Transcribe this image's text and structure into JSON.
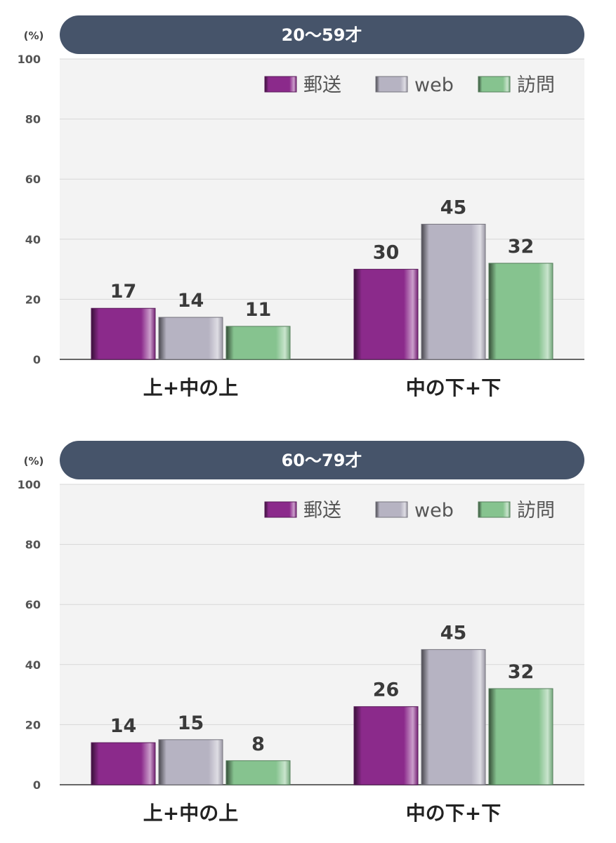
{
  "colors": {
    "title_bar": "#46546a",
    "plot_bg": "#f3f3f3",
    "mail": "#8b2a8b",
    "web": "#b6b3c2",
    "visit": "#86c38f"
  },
  "chart_data": [
    {
      "type": "bar",
      "title": "20〜59才",
      "unit_label": "(%)",
      "categories": [
        "上+中の上",
        "中の下+下"
      ],
      "series": [
        {
          "name": "郵送",
          "color_key": "mail",
          "values": [
            17,
            30
          ]
        },
        {
          "name": "web",
          "color_key": "web",
          "values": [
            14,
            45
          ]
        },
        {
          "name": "訪問",
          "color_key": "visit",
          "values": [
            11,
            32
          ]
        }
      ],
      "data_labels": [
        [
          "17",
          "30"
        ],
        [
          "14",
          "45"
        ],
        [
          "11",
          "32"
        ]
      ],
      "ylim": [
        0,
        100
      ],
      "yticks": [
        0,
        20,
        40,
        60,
        80,
        100
      ],
      "grid": true,
      "legend_position": "top-right"
    },
    {
      "type": "bar",
      "title": "60〜79才",
      "unit_label": "(%)",
      "categories": [
        "上+中の上",
        "中の下+下"
      ],
      "series": [
        {
          "name": "郵送",
          "color_key": "mail",
          "values": [
            14,
            26
          ]
        },
        {
          "name": "web",
          "color_key": "web",
          "values": [
            15,
            45
          ]
        },
        {
          "name": "訪問",
          "color_key": "visit",
          "values": [
            8,
            32
          ]
        }
      ],
      "data_labels": [
        [
          "14",
          "26"
        ],
        [
          "15",
          "45"
        ],
        [
          "8",
          "32"
        ]
      ],
      "ylim": [
        0,
        100
      ],
      "yticks": [
        0,
        20,
        40,
        60,
        80,
        100
      ],
      "grid": true,
      "legend_position": "top-right"
    }
  ]
}
